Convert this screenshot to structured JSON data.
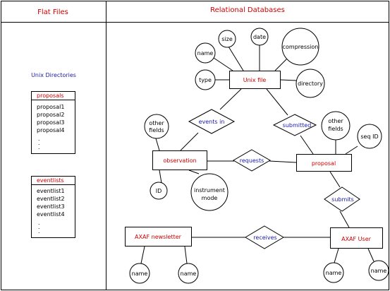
{
  "headers": {
    "left": "Flat Files",
    "right": "Relational Databases"
  },
  "flat_files": {
    "section_label": "Unix Directories",
    "lists": [
      {
        "title": "proposals",
        "items": [
          "proposal1",
          "proposal2",
          "proposal3",
          "proposal4",
          ".",
          ".",
          "."
        ]
      },
      {
        "title": "eventlists",
        "items": [
          "eventlist1",
          "eventlist2",
          "eventlist3",
          "eventlist4",
          ".",
          ".",
          "."
        ]
      }
    ]
  },
  "er": {
    "entities": {
      "unix_file": "Unix file",
      "observation": "observation",
      "proposal": "proposal",
      "newsletter": "AXAF newsletter",
      "axaf_user": "AXAF User"
    },
    "relationships": {
      "events_in": "events in",
      "submitted": "submitted",
      "requests": "requests",
      "submits": "submits",
      "receives": "receives"
    },
    "attributes": {
      "uf_name": "name",
      "uf_size": "size",
      "uf_date": "date",
      "uf_compression": "compression",
      "uf_type": "type",
      "uf_directory": "directory",
      "obs_other": [
        "other",
        "fields"
      ],
      "obs_id": "ID",
      "obs_instrument": [
        "instrument",
        "mode"
      ],
      "prop_other": [
        "other",
        "fields"
      ],
      "prop_seq": "seq ID",
      "news_name1": "name",
      "news_name2": "name",
      "user_name1": "name",
      "user_name2": "name"
    }
  },
  "colors": {
    "entity_text": "#cc0000",
    "relationship_text": "#1a1aaa",
    "attribute_text": "#000000",
    "line": "#000000"
  }
}
